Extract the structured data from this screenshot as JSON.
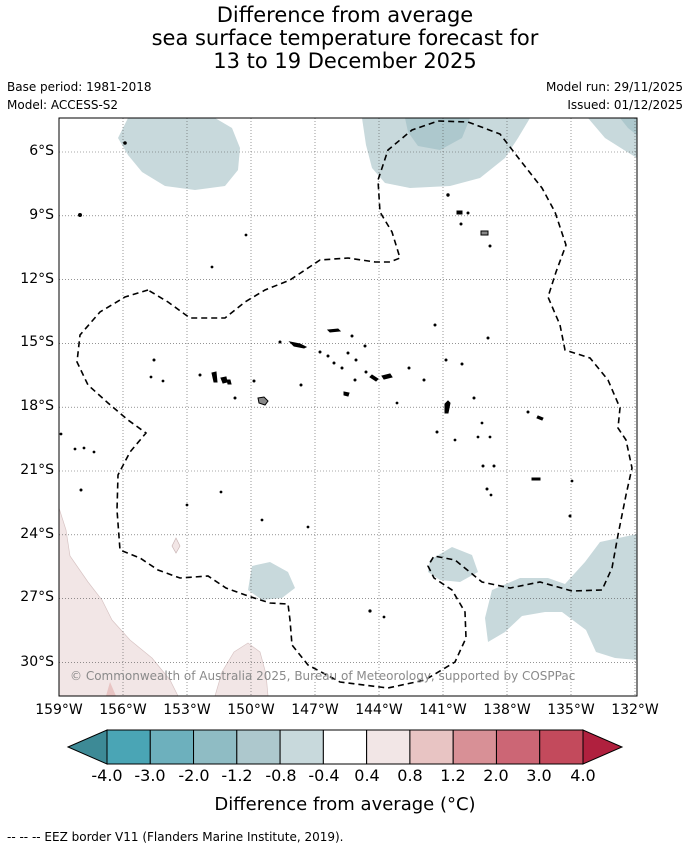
{
  "title": {
    "line1": "Difference from average",
    "line2": "sea surface temperature forecast for",
    "line3": "13 to 19 December 2025"
  },
  "meta": {
    "base_period": "Base period: 1981-2018",
    "model": "Model: ACCESS-S2",
    "model_run": "Model run: 29/11/2025",
    "issued": "Issued: 01/12/2025"
  },
  "map": {
    "lon_ticks": [
      "159°W",
      "156°W",
      "153°W",
      "150°W",
      "147°W",
      "144°W",
      "141°W",
      "138°W",
      "135°W",
      "132°W"
    ],
    "lat_ticks": [
      "6°S",
      "9°S",
      "12°S",
      "15°S",
      "18°S",
      "21°S",
      "24°S",
      "27°S",
      "30°S"
    ],
    "copyright": "© Commonwealth of Australia 2025, Bureau of Meteorology, supported by COSPPac",
    "border_style": "dashed",
    "grid": "dotted"
  },
  "colorbar": {
    "labels": [
      "-4.0",
      "-3.0",
      "-2.0",
      "-1.2",
      "-0.8",
      "-0.4",
      "0.4",
      "0.8",
      "1.2",
      "2.0",
      "3.0",
      "4.0"
    ],
    "colors": [
      "#3d8a96",
      "#4aa5b5",
      "#6db0bd",
      "#8fbcc4",
      "#adc8cd",
      "#c8d9dc",
      "#ffffff",
      "#f2e6e6",
      "#e8c4c3",
      "#d89096",
      "#cc6675",
      "#c34a5c",
      "#b0203e"
    ],
    "title": "Difference from average (°C)"
  },
  "footer": "--  --  -- EEZ border V11 (Flanders Marine Institute, 2019)."
}
